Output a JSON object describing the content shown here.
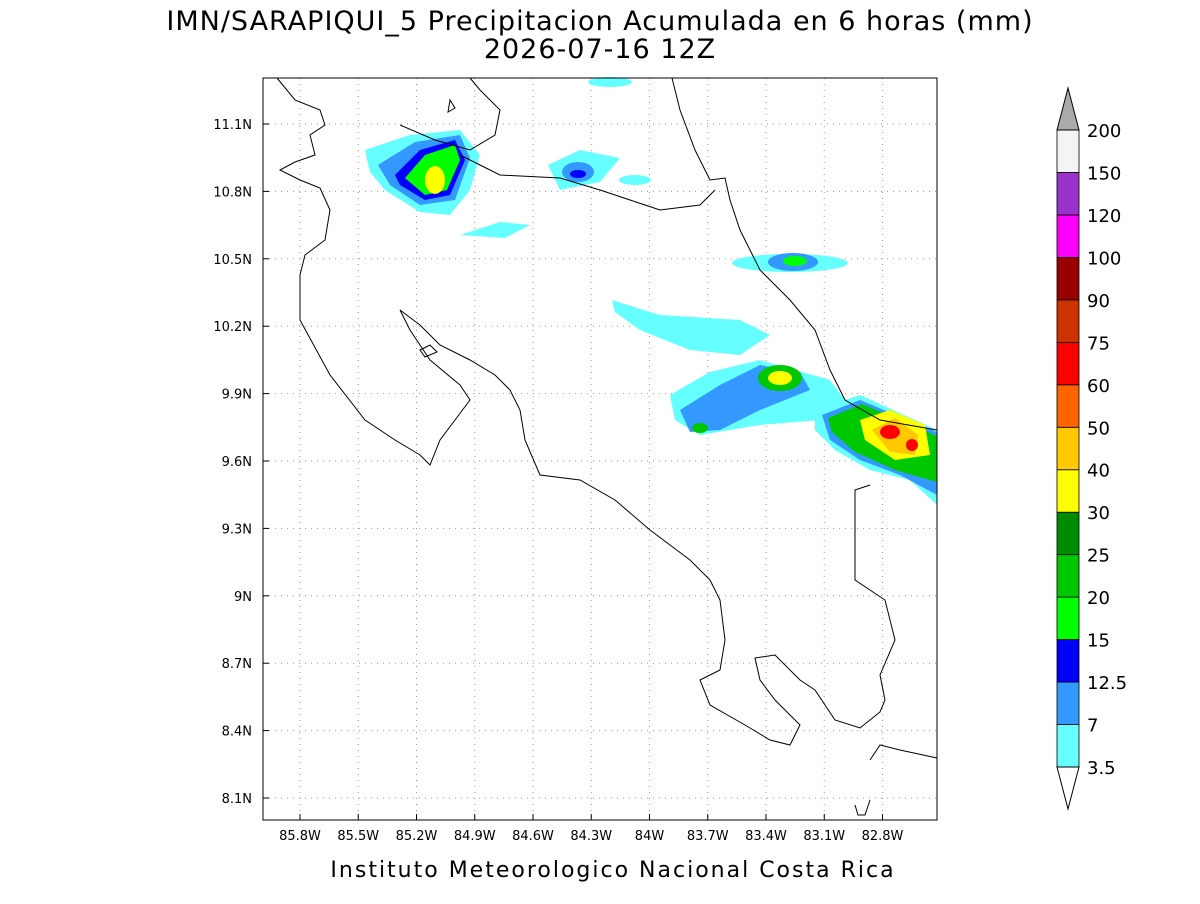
{
  "header": {
    "title": "IMN/SARAPIQUI_5 Precipitacion Acumulada en 6 horas (mm)",
    "subtitle": "2026-07-16 12Z"
  },
  "map": {
    "x_labels": [
      "85.8W",
      "85.5W",
      "85.2W",
      "84.9W",
      "84.6W",
      "84.3W",
      "84W",
      "83.7W",
      "83.4W",
      "83.1W",
      "82.8W"
    ],
    "y_labels": [
      "11.1N",
      "10.8N",
      "10.5N",
      "10.2N",
      "9.9N",
      "9.6N",
      "9.3N",
      "9N",
      "8.7N",
      "8.4N",
      "8.1N"
    ]
  },
  "colorbar": {
    "labels": [
      "3.5",
      "7",
      "12.5",
      "15",
      "20",
      "25",
      "30",
      "40",
      "50",
      "60",
      "75",
      "90",
      "100",
      "120",
      "150",
      "200"
    ],
    "colors": [
      "#66ffff",
      "#3399ff",
      "#0000ff",
      "#00ff00",
      "#00c800",
      "#008c00",
      "#ffff00",
      "#ffc800",
      "#ff6400",
      "#ff0000",
      "#cc3300",
      "#990000",
      "#ff00ff",
      "#9933cc",
      "#f4f4f4"
    ],
    "under_color": "#ffffff",
    "over_color": "#aaaaaa"
  },
  "footer": "Instituto Meteorologico Nacional Costa Rica"
}
